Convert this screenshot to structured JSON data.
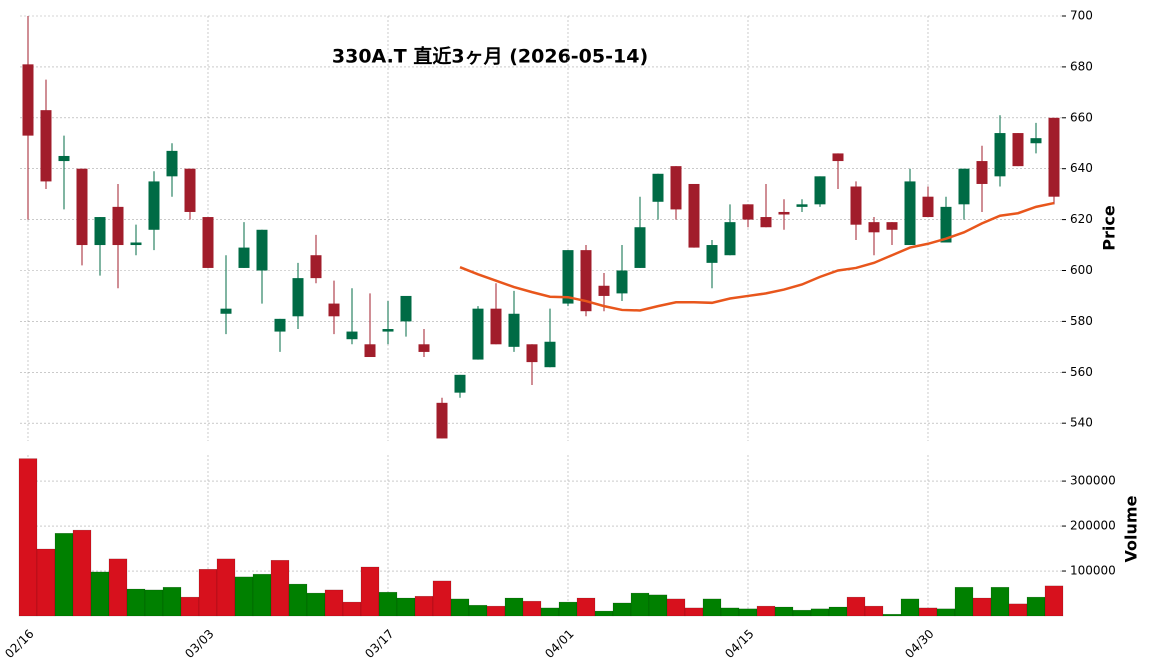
{
  "chart_data": {
    "type": "candlestick",
    "title": "330A.T  直近3ヶ月  (2026-05-14)",
    "ylabel": "Price",
    "y2label": "Volume",
    "categories": [
      "02/16",
      null,
      null,
      null,
      null,
      null,
      null,
      null,
      null,
      null,
      "03/03",
      null,
      null,
      null,
      null,
      null,
      null,
      null,
      null,
      null,
      "03/17",
      null,
      null,
      null,
      null,
      null,
      null,
      null,
      null,
      null,
      "04/01",
      null,
      null,
      null,
      null,
      null,
      null,
      null,
      null,
      null,
      "04/15",
      null,
      null,
      null,
      null,
      null,
      null,
      null,
      null,
      null,
      "04/30",
      null,
      null,
      null,
      null,
      null,
      null,
      null
    ],
    "open": [
      681,
      663,
      643,
      640,
      610,
      625,
      610,
      616,
      637,
      640,
      621,
      583,
      601,
      600,
      576,
      582,
      606,
      587,
      573,
      571,
      576,
      580,
      571,
      548,
      552,
      565,
      585,
      570,
      571,
      562,
      587,
      608,
      594,
      591,
      601,
      627,
      641,
      634,
      603,
      606,
      626,
      621,
      623,
      625,
      626,
      646,
      633,
      619,
      619,
      610,
      629,
      611,
      626,
      643,
      637,
      654,
      650,
      660
    ],
    "high": [
      700,
      675,
      653,
      640,
      621,
      634,
      618,
      639,
      650,
      640,
      621,
      606,
      619,
      616,
      581,
      603,
      614,
      596,
      593,
      591,
      588,
      590,
      577,
      550,
      559,
      586,
      595,
      592,
      571,
      585,
      608,
      610,
      599,
      610,
      629,
      638,
      641,
      634,
      612,
      626,
      626,
      634,
      628,
      628,
      637,
      646,
      635,
      621,
      619,
      640,
      633,
      629,
      640,
      649,
      661,
      654,
      658,
      660
    ],
    "low": [
      620,
      632,
      624,
      602,
      598,
      593,
      606,
      608,
      629,
      620,
      601,
      575,
      601,
      587,
      568,
      577,
      595,
      575,
      571,
      566,
      571,
      574,
      566,
      534,
      550,
      565,
      571,
      568,
      555,
      562,
      586,
      582,
      584,
      588,
      601,
      620,
      620,
      609,
      593,
      606,
      617,
      617,
      616,
      623,
      625,
      632,
      612,
      606,
      610,
      610,
      621,
      611,
      620,
      623,
      633,
      641,
      646,
      626
    ],
    "close": [
      653,
      635,
      645,
      610,
      621,
      610,
      611,
      635,
      647,
      623,
      601,
      585,
      609,
      616,
      581,
      597,
      597,
      582,
      576,
      566,
      577,
      590,
      568,
      534,
      559,
      585,
      571,
      583,
      564,
      572,
      608,
      584,
      590,
      600,
      617,
      638,
      624,
      609,
      610,
      619,
      620,
      617,
      622,
      626,
      637,
      643,
      618,
      615,
      616,
      635,
      621,
      625,
      640,
      634,
      654,
      641,
      652,
      629
    ],
    "volume": [
      350000,
      149000,
      184000,
      191000,
      98000,
      127000,
      60000,
      58000,
      64000,
      42000,
      104000,
      127000,
      87000,
      93000,
      124000,
      71000,
      51000,
      58000,
      31000,
      109000,
      53000,
      40000,
      44000,
      78000,
      38000,
      24000,
      22000,
      40000,
      33000,
      18000,
      31000,
      40000,
      11000,
      29000,
      51000,
      47000,
      38000,
      18000,
      38000,
      18000,
      16000,
      22000,
      20000,
      13000,
      16000,
      20000,
      42000,
      22000,
      4000,
      38000,
      18000,
      16000,
      64000,
      40000,
      64000,
      27000,
      42000,
      67000
    ],
    "ma": [
      null,
      null,
      null,
      null,
      null,
      null,
      null,
      null,
      null,
      null,
      null,
      null,
      null,
      null,
      null,
      null,
      null,
      null,
      null,
      null,
      null,
      null,
      null,
      null,
      601.3,
      598.5,
      596,
      593.5,
      591.5,
      589.7,
      589.5,
      588,
      586,
      584.5,
      584.3,
      586,
      587.5,
      587.5,
      587.3,
      589,
      590,
      591,
      592.5,
      594.5,
      597.5,
      600,
      601,
      603,
      606,
      609,
      610.5,
      612.5,
      615,
      618.5,
      621.5,
      622.5,
      625,
      626.5
    ],
    "ylim": [
      533,
      700
    ],
    "yticks": [
      540,
      560,
      580,
      600,
      620,
      640,
      660,
      680,
      700
    ],
    "y2lim": [
      0,
      358000
    ],
    "y2ticks": [
      100000,
      200000,
      300000
    ],
    "up_color": "#006b45",
    "down_color": "#a11d2b",
    "volume_up_color": "#008000",
    "volume_down_color": "#d7111d",
    "ma_color": "#e8561c",
    "grid": true
  }
}
